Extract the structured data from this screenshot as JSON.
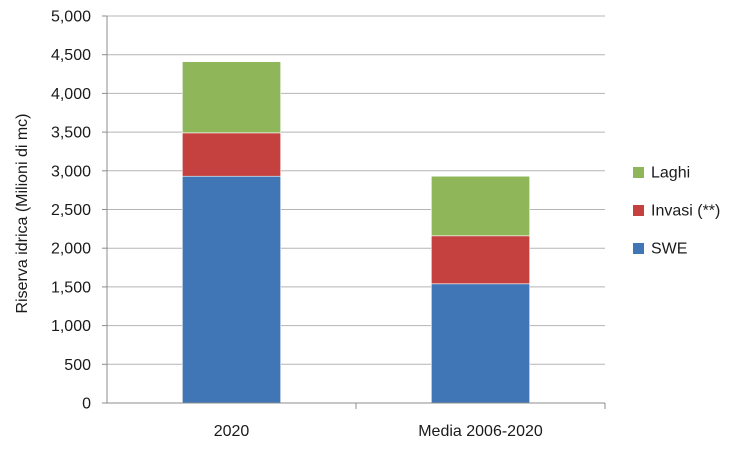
{
  "chart_data": {
    "type": "bar",
    "stacked": true,
    "categories": [
      "2020",
      "Media 2006-2020"
    ],
    "series": [
      {
        "name": "SWE",
        "values": [
          2930,
          1540
        ],
        "color": "#4076b5"
      },
      {
        "name": "Invasi (**)",
        "values": [
          560,
          620
        ],
        "color": "#c4413f"
      },
      {
        "name": "Laghi",
        "values": [
          920,
          770
        ],
        "color": "#8fb75a"
      }
    ],
    "title": "",
    "xlabel": "",
    "ylabel": "Riserva idrica  (Milioni di mc)",
    "ylim": [
      0,
      5000
    ],
    "yticks": [
      0,
      500,
      1000,
      1500,
      2000,
      2500,
      3000,
      3500,
      4000,
      4500,
      5000
    ],
    "ytick_labels": [
      "0",
      "500",
      "1,000",
      "1,500",
      "2,000",
      "2,500",
      "3,000",
      "3,500",
      "4,000",
      "4,500",
      "5,000"
    ],
    "legend": {
      "position": "right",
      "entries": [
        "Laghi",
        "Invasi (**)",
        "SWE"
      ]
    },
    "grid": true
  }
}
